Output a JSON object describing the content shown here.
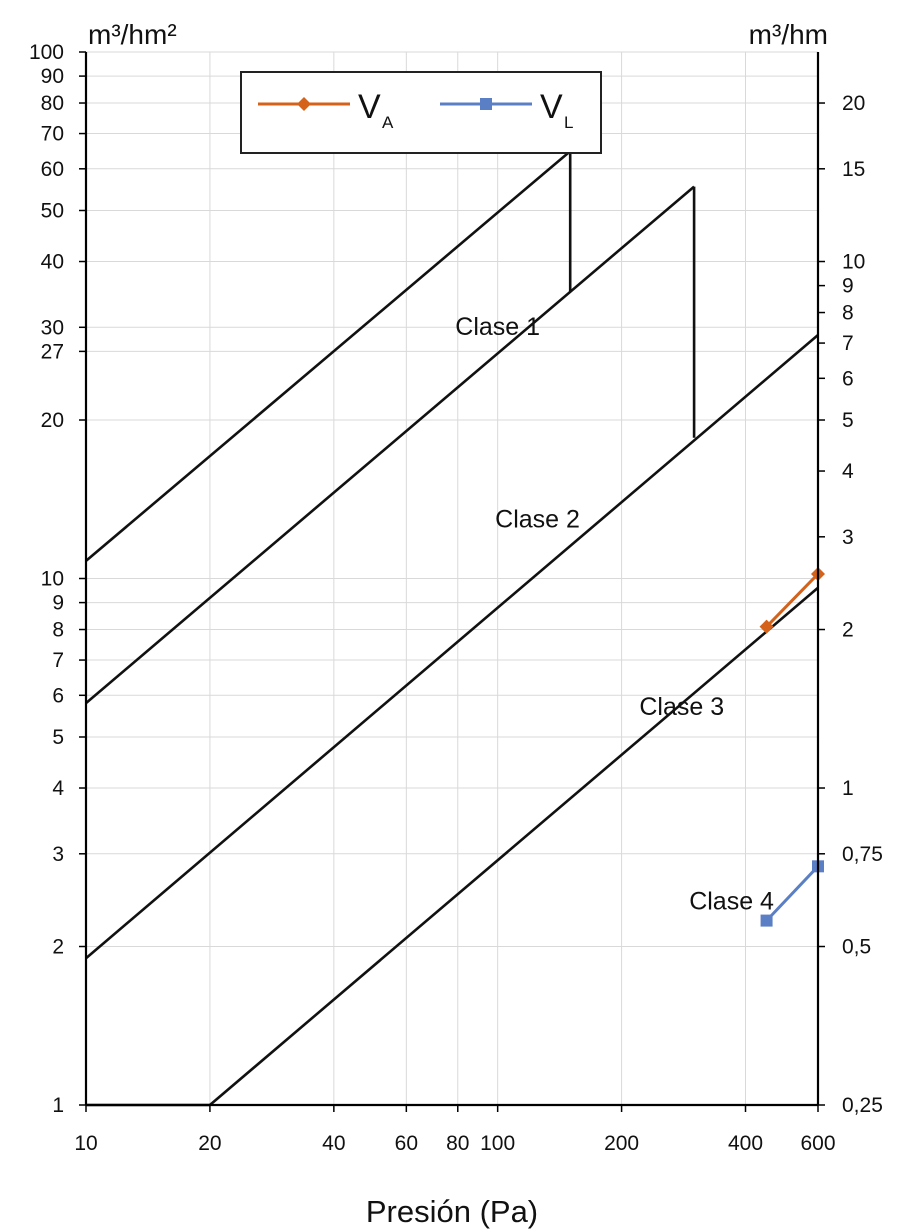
{
  "chart_data": {
    "type": "line",
    "title": "",
    "xlabel": "Presión (Pa)",
    "ylabel_left": "m³/hm²",
    "ylabel_right": "m³/hm",
    "x_scale": "log",
    "y_scale": "log",
    "xlim": [
      10,
      600
    ],
    "ylim_left": [
      1,
      100
    ],
    "ylim_right": [
      0.25,
      25
    ],
    "grid": true,
    "legend_position": "top",
    "x_ticks": [
      {
        "value": 10,
        "label": "10"
      },
      {
        "value": 20,
        "label": "20"
      },
      {
        "value": 40,
        "label": "40"
      },
      {
        "value": 60,
        "label": "60"
      },
      {
        "value": 80,
        "label": "80"
      },
      {
        "value": 100,
        "label": "100"
      },
      {
        "value": 200,
        "label": "200"
      },
      {
        "value": 400,
        "label": "400"
      },
      {
        "value": 600,
        "label": "600"
      }
    ],
    "y_left_ticks": [
      {
        "value": 1,
        "label": "1"
      },
      {
        "value": 2,
        "label": "2"
      },
      {
        "value": 3,
        "label": "3"
      },
      {
        "value": 4,
        "label": "4"
      },
      {
        "value": 5,
        "label": "5"
      },
      {
        "value": 6,
        "label": "6"
      },
      {
        "value": 7,
        "label": "7"
      },
      {
        "value": 8,
        "label": "8"
      },
      {
        "value": 9,
        "label": "9"
      },
      {
        "value": 10,
        "label": "10"
      },
      {
        "value": 20,
        "label": "20"
      },
      {
        "value": 27,
        "label": "27"
      },
      {
        "value": 30,
        "label": "30"
      },
      {
        "value": 40,
        "label": "40"
      },
      {
        "value": 50,
        "label": "50"
      },
      {
        "value": 60,
        "label": "60"
      },
      {
        "value": 70,
        "label": "70"
      },
      {
        "value": 80,
        "label": "80"
      },
      {
        "value": 90,
        "label": "90"
      },
      {
        "value": 100,
        "label": "100"
      }
    ],
    "y_right_ticks": [
      {
        "value": 0.25,
        "label": "0,25"
      },
      {
        "value": 0.5,
        "label": "0,5"
      },
      {
        "value": 0.75,
        "label": "0,75"
      },
      {
        "value": 1,
        "label": "1"
      },
      {
        "value": 2,
        "label": "2"
      },
      {
        "value": 3,
        "label": "3"
      },
      {
        "value": 4,
        "label": "4"
      },
      {
        "value": 5,
        "label": "5"
      },
      {
        "value": 6,
        "label": "6"
      },
      {
        "value": 7,
        "label": "7"
      },
      {
        "value": 8,
        "label": "8"
      },
      {
        "value": 9,
        "label": "9"
      },
      {
        "value": 10,
        "label": "10"
      },
      {
        "value": 15,
        "label": "15"
      },
      {
        "value": 20,
        "label": "20"
      }
    ],
    "class_boundaries": [
      {
        "points": [
          [
            10,
            10.8
          ],
          [
            150,
            64.8
          ]
        ]
      },
      {
        "points": [
          [
            150,
            64.8
          ],
          [
            150,
            35
          ]
        ]
      },
      {
        "points": [
          [
            10,
            5.8
          ],
          [
            300,
            55.5
          ]
        ]
      },
      {
        "points": [
          [
            300,
            55.5
          ],
          [
            300,
            18.5
          ]
        ]
      },
      {
        "points": [
          [
            10,
            1.9
          ],
          [
            600,
            29
          ]
        ]
      },
      {
        "points": [
          [
            10,
            1
          ],
          [
            20,
            1
          ]
        ]
      },
      {
        "points": [
          [
            20,
            1
          ],
          [
            600,
            9.6
          ]
        ]
      }
    ],
    "class_labels": [
      {
        "text": "Clase 1",
        "x": 100,
        "y": 29
      },
      {
        "text": "Clase 2",
        "x": 125,
        "y": 12.5
      },
      {
        "text": "Clase 3",
        "x": 280,
        "y": 5.5
      },
      {
        "text": "Clase 4",
        "x": 370,
        "y": 2.35
      }
    ],
    "series": [
      {
        "name": "V",
        "subscript": "A",
        "color": "#d4621a",
        "marker": "diamond",
        "axis": "left",
        "points": [
          [
            450,
            8.1
          ],
          [
            600,
            10.2
          ]
        ]
      },
      {
        "name": "V",
        "subscript": "L",
        "color": "#5b7fc4",
        "marker": "square",
        "axis": "right",
        "points": [
          [
            450,
            0.56
          ],
          [
            600,
            0.71
          ]
        ]
      }
    ]
  }
}
